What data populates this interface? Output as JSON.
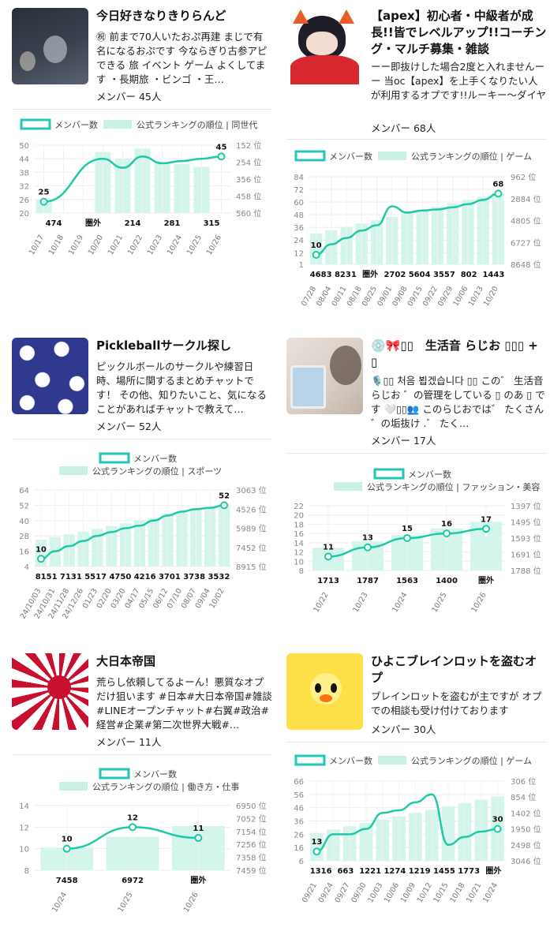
{
  "cards": [
    {
      "title": "今日好きなりきりらんど",
      "desc": "㊗ 前まで70人いたおぷ再建 まじで有名になるおぷです 今ならぎり古参アピできる 旅 イベント ゲーム よくしてます ・長期旅 ・ビンゴ ・王…",
      "members": "メンバー 45人",
      "legend_member": "メンバー数",
      "legend_rank": "公式ランキングの順位 | 同世代",
      "chart_data": {
        "type": "line",
        "x": [
          "10/17",
          "10/18",
          "10/19",
          "10/20",
          "10/21",
          "10/22",
          "10/23",
          "10/24",
          "10/25",
          "10/26"
        ],
        "series": [
          {
            "name": "メンバー数",
            "values": [
              25,
              null,
              null,
              44,
              40,
              45,
              42,
              43,
              44,
              45
            ]
          }
        ],
        "rank_bars": [
          0.2,
          0,
          0,
          0.9,
          0.8,
          0.95,
          0.75,
          0.72,
          0.68,
          0
        ],
        "bottom_labels": [
          "474",
          "圏外",
          "214",
          "281",
          "315"
        ],
        "yticks": [
          50,
          44,
          38,
          32,
          26,
          20
        ],
        "ytick_right": [
          "152 位",
          "254 位",
          "356 位",
          "458 位",
          "560 位"
        ],
        "point_labels": [
          {
            "i": 0,
            "v": "25"
          },
          {
            "i": 9,
            "v": "45"
          }
        ]
      }
    },
    {
      "title": "【apex】初心者・中級者が成長!!皆でレベルアップ!!コーチング・マルチ募集・雑談",
      "desc": "ーー即抜けした場合2度と入れませんーー 当oc【apex】を上手くなりたい人が利用するオプです!!ルーキー〜ダイヤの初心者〜中級者の人…",
      "members": "メンバー 68人",
      "legend_member": "メンバー数",
      "legend_rank": "公式ランキングの順位 | ゲーム",
      "chart_data": {
        "type": "line",
        "x": [
          "07/28",
          "08/04",
          "08/11",
          "08/18",
          "08/25",
          "09/01",
          "09/08",
          "09/15",
          "09/22",
          "09/29",
          "10/06",
          "10/13",
          "10/20"
        ],
        "series": [
          {
            "name": "メンバー数",
            "values": [
              10,
              20,
              26,
              33,
              38,
              56,
              50,
              52,
              53,
              55,
              58,
              62,
              68
            ]
          }
        ],
        "bottom_labels": [
          "4683",
          "8231",
          "圏外",
          "2702",
          "5604",
          "3557",
          "802",
          "1443"
        ],
        "yticks": [
          84,
          72,
          60,
          48,
          36,
          24,
          12,
          1
        ],
        "ytick_right": [
          "962 位",
          "2884 位",
          "4805 位",
          "6727 位",
          "8648 位"
        ],
        "point_labels": [
          {
            "i": 0,
            "v": "10"
          },
          {
            "i": 12,
            "v": "68"
          }
        ]
      }
    },
    {
      "title": "Pickleballサークル探し",
      "desc": "ピックルボールのサークルや練習日時、場所に関するまとめチャットです！ その他、知りたいこと、気になることがあればチャットで教えて…",
      "members": "メンバー 52人",
      "legend_member": "メンバー数",
      "legend_rank": "公式ランキングの順位 | スポーツ",
      "chart_data": {
        "type": "line",
        "x": [
          "24/10/03",
          "24/10/31",
          "24/11/28",
          "24/12/26",
          "01/23",
          "02/20",
          "03/20",
          "04/17",
          "05/15",
          "06/12",
          "07/10",
          "08/07",
          "09/04",
          "10/02"
        ],
        "series": [
          {
            "name": "メンバー数",
            "values": [
              10,
              16,
              20,
              24,
              28,
              31,
              34,
              36,
              40,
              44,
              47,
              49,
              50,
              52
            ]
          }
        ],
        "bottom_labels": [
          "8151",
          "7131",
          "5517",
          "4750",
          "4216",
          "3701",
          "3738",
          "3532"
        ],
        "yticks": [
          64,
          52,
          40,
          28,
          16,
          4
        ],
        "ytick_right": [
          "3063 位",
          "4526 位",
          "5989 位",
          "7452 位",
          "8915 位"
        ],
        "point_labels": [
          {
            "i": 0,
            "v": "10"
          },
          {
            "i": 13,
            "v": "52"
          }
        ]
      }
    },
    {
      "title": "💿🎀▯▯　生活音 らじお ▯▯▯ + ▯",
      "desc": "🎙️▯▯ 처음 뵙겠습니다 ▯▯ この゛ 生活音 らじお ゛の管理をしている ▯ のあ ▯ です 🤍▯▯👥 このらじおでは゛ たくさん ゛の垢抜け .゛ たく…",
      "members": "メンバー 17人",
      "legend_member": "メンバー数",
      "legend_rank": "公式ランキングの順位 | ファッション・美容",
      "chart_data": {
        "type": "line",
        "x": [
          "10/22",
          "10/23",
          "10/24",
          "10/25",
          "10/26"
        ],
        "series": [
          {
            "name": "メンバー数",
            "values": [
              11,
              13,
              15,
              16,
              17
            ]
          }
        ],
        "bottom_labels": [
          "1713",
          "1787",
          "1563",
          "1400",
          "圏外"
        ],
        "yticks": [
          22,
          20,
          18,
          16,
          14,
          12,
          10,
          8
        ],
        "ytick_right": [
          "1397 位",
          "1495 位",
          "1593 位",
          "1691 位",
          "1788 位"
        ],
        "point_labels": [
          {
            "i": 0,
            "v": "11"
          },
          {
            "i": 1,
            "v": "13"
          },
          {
            "i": 2,
            "v": "15"
          },
          {
            "i": 3,
            "v": "16"
          },
          {
            "i": 4,
            "v": "17"
          }
        ]
      }
    },
    {
      "title": "大日本帝国",
      "desc": "荒らし依頼してるよーん！悪質なオプだけ狙います #日本#大日本帝国#雑談#LINEオープンチャット#右翼#政治#経営#企業#第二次世界大戦#…",
      "members": "メンバー 11人",
      "legend_member": "メンバー数",
      "legend_rank": "公式ランキングの順位 | 働き方・仕事",
      "chart_data": {
        "type": "line",
        "x": [
          "10/24",
          "10/25",
          "10/26"
        ],
        "series": [
          {
            "name": "メンバー数",
            "values": [
              10,
              12,
              11
            ]
          }
        ],
        "bottom_labels": [
          "7458",
          "6972",
          "圏外"
        ],
        "yticks": [
          14,
          12,
          10,
          8
        ],
        "ytick_right": [
          "6950 位",
          "7052 位",
          "7154 位",
          "7256 位",
          "7358 位",
          "7459 位"
        ],
        "point_labels": [
          {
            "i": 0,
            "v": "10"
          },
          {
            "i": 1,
            "v": "12"
          },
          {
            "i": 2,
            "v": "11"
          }
        ]
      }
    },
    {
      "title": "ひよこブレインロットを盗むオプ",
      "desc": "ブレインロットを盗むが主ですが オプでの相談も受け付けております",
      "members": "メンバー 30人",
      "legend_member": "メンバー数",
      "legend_rank": "公式ランキングの順位 | ゲーム",
      "chart_data": {
        "type": "line",
        "x": [
          "09/21",
          "09/24",
          "09/27",
          "09/30",
          "10/03",
          "10/06",
          "10/09",
          "10/12",
          "10/15",
          "10/18",
          "10/21",
          "10/24"
        ],
        "series": [
          {
            "name": "メンバー数",
            "values": [
              13,
              26,
              26,
              30,
              42,
              44,
              50,
              56,
              18,
              24,
              28,
              30
            ]
          }
        ],
        "bottom_labels": [
          "1316",
          "663",
          "1221",
          "1274",
          "1219",
          "1455",
          "1773",
          "圏外"
        ],
        "yticks": [
          66,
          56,
          46,
          36,
          26,
          16,
          6
        ],
        "ytick_right": [
          "306 位",
          "854 位",
          "1402 位",
          "1950 位",
          "2498 位",
          "3046 位"
        ],
        "point_labels": [
          {
            "i": 0,
            "v": "13"
          },
          {
            "i": 11,
            "v": "30"
          }
        ]
      }
    }
  ]
}
